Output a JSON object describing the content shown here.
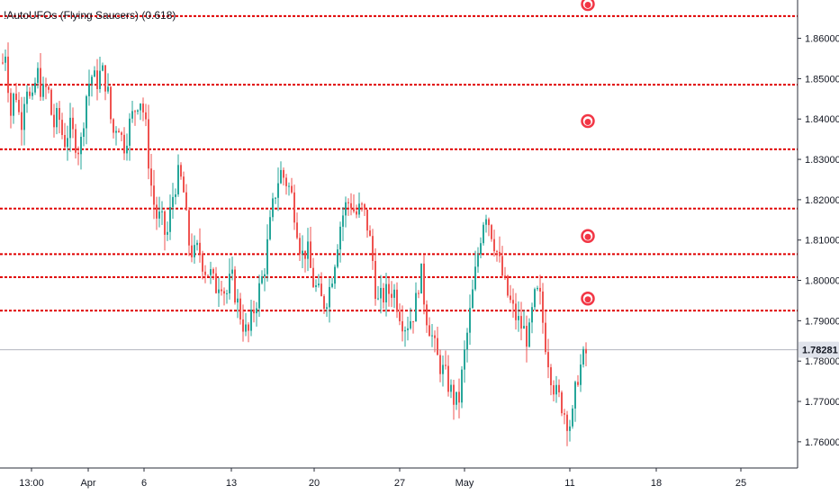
{
  "indicator_label": "!AutoUFOs (Flying Saucers) (0.618)",
  "current_price_label": "1.78281",
  "colors": {
    "up": "#26a69a",
    "down": "#ef5350",
    "level_line": "#e00000",
    "marker": "#f23645",
    "background": "#ffffff",
    "axis_text": "#131722",
    "axis_line": "#2a2e39",
    "last_price_line": "#b2b5be"
  },
  "chart_data": {
    "type": "candlestick",
    "title": "",
    "xlabel": "",
    "ylabel": "",
    "ylim": [
      1.7535,
      1.8695
    ],
    "grid": false,
    "x_ticks": [
      "13:00",
      "Apr",
      "6",
      "13",
      "20",
      "27",
      "May",
      "11",
      "18",
      "25"
    ],
    "y_ticks": [
      "1.86000",
      "1.85000",
      "1.84000",
      "1.83000",
      "1.82000",
      "1.81000",
      "1.80000",
      "1.79000",
      "1.78000",
      "1.77000",
      "1.76000"
    ],
    "y_tick_values": [
      1.86,
      1.85,
      1.84,
      1.83,
      1.82,
      1.81,
      1.8,
      1.79,
      1.78,
      1.77,
      1.76
    ],
    "last_price": 1.78281,
    "horizontal_levels": [
      1.8655,
      1.8485,
      1.8325,
      1.8178,
      1.8065,
      1.8008,
      1.7925
    ],
    "flying_saucer_markers": [
      1.8685,
      1.8395,
      1.811,
      1.7955
    ],
    "price_path": [
      [
        0,
        1.852
      ],
      [
        6,
        1.858
      ],
      [
        10,
        1.84
      ],
      [
        16,
        1.848
      ],
      [
        22,
        1.838
      ],
      [
        28,
        1.85
      ],
      [
        34,
        1.842
      ],
      [
        40,
        1.852
      ],
      [
        46,
        1.846
      ],
      [
        52,
        1.848
      ],
      [
        58,
        1.838
      ],
      [
        64,
        1.841
      ],
      [
        70,
        1.834
      ],
      [
        76,
        1.838
      ],
      [
        82,
        1.835
      ],
      [
        88,
        1.832
      ],
      [
        94,
        1.845
      ],
      [
        100,
        1.851
      ],
      [
        106,
        1.849
      ],
      [
        112,
        1.852
      ],
      [
        118,
        1.848
      ],
      [
        124,
        1.836
      ],
      [
        130,
        1.84
      ],
      [
        136,
        1.833
      ],
      [
        142,
        1.838
      ],
      [
        148,
        1.842
      ],
      [
        154,
        1.846
      ],
      [
        160,
        1.84
      ],
      [
        166,
        1.825
      ],
      [
        172,
        1.816
      ],
      [
        178,
        1.815
      ],
      [
        184,
        1.81
      ],
      [
        190,
        1.82
      ],
      [
        196,
        1.826
      ],
      [
        202,
        1.824
      ],
      [
        208,
        1.81
      ],
      [
        214,
        1.806
      ],
      [
        220,
        1.808
      ],
      [
        226,
        1.803
      ],
      [
        232,
        1.802
      ],
      [
        238,
        1.798
      ],
      [
        244,
        1.801
      ],
      [
        250,
        1.796
      ],
      [
        256,
        1.801
      ],
      [
        262,
        1.795
      ],
      [
        268,
        1.79
      ],
      [
        274,
        1.786
      ],
      [
        280,
        1.792
      ],
      [
        286,
        1.797
      ],
      [
        292,
        1.802
      ],
      [
        298,
        1.812
      ],
      [
        304,
        1.821
      ],
      [
        310,
        1.827
      ],
      [
        316,
        1.825
      ],
      [
        322,
        1.822
      ],
      [
        328,
        1.815
      ],
      [
        334,
        1.806
      ],
      [
        340,
        1.808
      ],
      [
        346,
        1.8
      ],
      [
        352,
        1.797
      ],
      [
        358,
        1.794
      ],
      [
        364,
        1.797
      ],
      [
        370,
        1.804
      ],
      [
        376,
        1.813
      ],
      [
        382,
        1.818
      ],
      [
        388,
        1.82
      ],
      [
        394,
        1.816
      ],
      [
        400,
        1.818
      ],
      [
        406,
        1.815
      ],
      [
        412,
        1.807
      ],
      [
        418,
        1.794
      ],
      [
        424,
        1.796
      ],
      [
        430,
        1.797
      ],
      [
        436,
        1.798
      ],
      [
        442,
        1.793
      ],
      [
        448,
        1.789
      ],
      [
        454,
        1.79
      ],
      [
        460,
        1.793
      ],
      [
        466,
        1.803
      ],
      [
        472,
        1.792
      ],
      [
        478,
        1.787
      ],
      [
        484,
        1.781
      ],
      [
        490,
        1.778
      ],
      [
        496,
        1.775
      ],
      [
        502,
        1.771
      ],
      [
        508,
        1.769
      ],
      [
        514,
        1.78
      ],
      [
        520,
        1.79
      ],
      [
        526,
        1.8
      ],
      [
        532,
        1.81
      ],
      [
        538,
        1.818
      ],
      [
        544,
        1.813
      ],
      [
        550,
        1.808
      ],
      [
        556,
        1.802
      ],
      [
        562,
        1.797
      ],
      [
        568,
        1.793
      ],
      [
        574,
        1.79
      ],
      [
        580,
        1.788
      ],
      [
        586,
        1.785
      ],
      [
        592,
        1.795
      ],
      [
        598,
        1.797
      ],
      [
        604,
        1.786
      ],
      [
        610,
        1.778
      ],
      [
        616,
        1.772
      ],
      [
        622,
        1.77
      ],
      [
        628,
        1.766
      ],
      [
        634,
        1.764
      ],
      [
        640,
        1.776
      ],
      [
        646,
        1.78
      ],
      [
        652,
        1.7828
      ]
    ]
  }
}
